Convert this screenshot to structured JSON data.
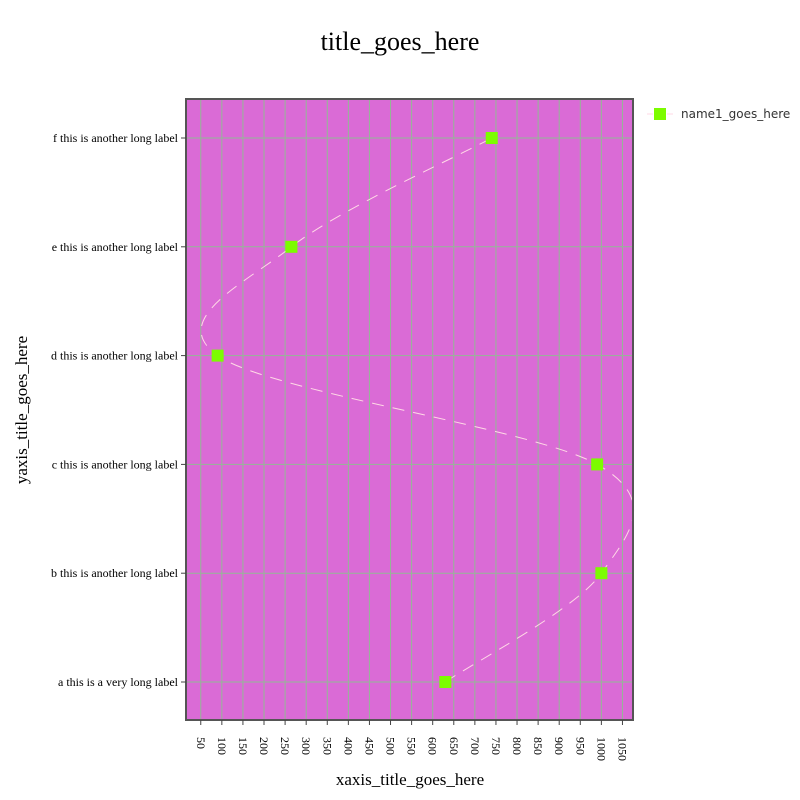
{
  "colors": {
    "plot_bg": "#da6bd6",
    "grid": "#93b895",
    "frame": "#555555",
    "marker": "#7cfc00",
    "line": "#ffd9e6"
  },
  "chart_data": {
    "type": "line",
    "title": "title_goes_here",
    "xlabel": "xaxis_title_goes_here",
    "ylabel": "yaxis_title_goes_here",
    "xlim": [
      15,
      1075
    ],
    "xticks": [
      50,
      100,
      150,
      200,
      250,
      300,
      350,
      400,
      450,
      500,
      550,
      600,
      650,
      700,
      750,
      800,
      850,
      900,
      950,
      1000,
      1050
    ],
    "categories": [
      "a this is a very long label",
      "b this is another long label",
      "c this is another long label",
      "d this is another long label",
      "e this is another long label",
      "f this is another long label"
    ],
    "grid": true,
    "legend_position": "top-right",
    "line_style": "spline-dashed",
    "marker": "square",
    "series": [
      {
        "name": "name1_goes_here",
        "points": [
          {
            "category": "a this is a very long label",
            "x": 630
          },
          {
            "category": "b this is another long label",
            "x": 1000
          },
          {
            "category": "c this is another long label",
            "x": 990
          },
          {
            "category": "d this is another long label",
            "x": 90
          },
          {
            "category": "e this is another long label",
            "x": 265
          },
          {
            "category": "f this is another long label",
            "x": 740
          }
        ]
      }
    ]
  }
}
